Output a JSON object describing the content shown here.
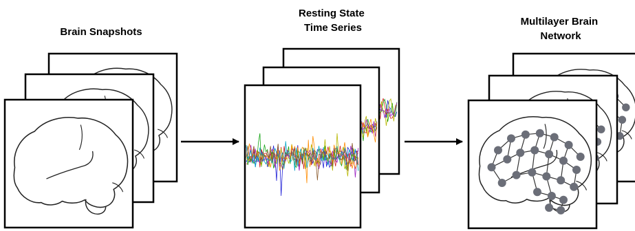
{
  "panels": [
    {
      "title_lines": [
        "Brain Snapshots"
      ]
    },
    {
      "title_lines": [
        "Resting State",
        "Time Series"
      ]
    },
    {
      "title_lines": [
        "Multilayer Brain",
        "Network"
      ]
    }
  ],
  "colors": {
    "frame": "#000000",
    "brain_outline": "#222222",
    "node": "#6b6e78",
    "trace_palette": [
      "#1f1fd6",
      "#d41c1c",
      "#13a313",
      "#b8b800",
      "#9b1fc4",
      "#ff8c00",
      "#00a5c8",
      "#8a5a2b"
    ]
  },
  "icons": [
    "arrow-right-icon",
    "brain-outline-icon",
    "network-node-icon"
  ]
}
